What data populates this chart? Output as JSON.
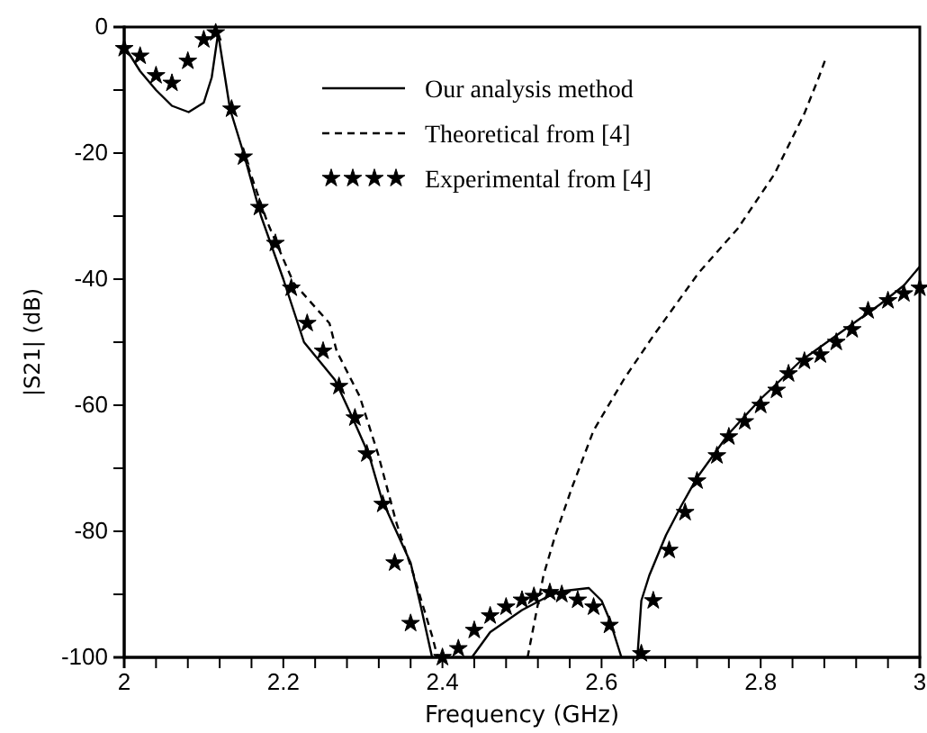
{
  "chart_data": {
    "type": "line",
    "xlabel": "Frequency (GHz)",
    "ylabel": "|S21| (dB)",
    "xlim": [
      2,
      3
    ],
    "ylim": [
      -100,
      0
    ],
    "xticks": [
      2,
      {
        "value": 2.04,
        "label": null
      },
      {
        "value": 2.08,
        "label": null
      },
      {
        "value": 2.12,
        "label": null
      },
      {
        "value": 2.16,
        "label": null
      },
      2.2,
      {
        "value": 2.24,
        "label": null
      },
      {
        "value": 2.28,
        "label": null
      },
      {
        "value": 2.32,
        "label": null
      },
      {
        "value": 2.36,
        "label": null
      },
      2.4,
      {
        "value": 2.44,
        "label": null
      },
      {
        "value": 2.48,
        "label": null
      },
      {
        "value": 2.52,
        "label": null
      },
      {
        "value": 2.56,
        "label": null
      },
      2.6,
      {
        "value": 2.64,
        "label": null
      },
      {
        "value": 2.68,
        "label": null
      },
      {
        "value": 2.72,
        "label": null
      },
      {
        "value": 2.76,
        "label": null
      },
      2.8,
      {
        "value": 2.84,
        "label": null
      },
      {
        "value": 2.88,
        "label": null
      },
      {
        "value": 2.92,
        "label": null
      },
      {
        "value": 2.96,
        "label": null
      },
      3
    ],
    "yticks": [
      -100,
      {
        "value": -90,
        "label": null
      },
      -80,
      {
        "value": -70,
        "label": null
      },
      -60,
      {
        "value": -50,
        "label": null
      },
      -40,
      {
        "value": -30,
        "label": null
      },
      -20,
      {
        "value": -10,
        "label": null
      },
      0
    ],
    "grid": false,
    "legend": "top",
    "series": [
      {
        "name": "Our analysis method",
        "color": "#000000",
        "line_style": "solid",
        "x": [
          2,
          2.02,
          2.04,
          2.06,
          2.081,
          2.1,
          2.11,
          2.118,
          2.133,
          2.15,
          2.172,
          2.2,
          2.226,
          2.265,
          2.287,
          2.308,
          2.324,
          2.36,
          2.373,
          2.387,
          null,
          2.437,
          2.46,
          2.5,
          2.53,
          2.55,
          2.584,
          2.6,
          2.61,
          2.62,
          2.625,
          null,
          2.645,
          2.65,
          2.66,
          2.681,
          2.7,
          2.72,
          2.76,
          2.8,
          2.85,
          2.9,
          2.95,
          2.98,
          3
        ],
        "values": [
          -3,
          -7,
          -10,
          -12.5,
          -13.5,
          -12,
          -8,
          -1,
          -13,
          -20,
          -30,
          -40,
          -50,
          -56,
          -62,
          -68,
          -75,
          -85,
          -92,
          -100,
          null,
          -100,
          -96,
          -92.5,
          -90.5,
          -89.5,
          -89,
          -91,
          -94,
          -98,
          -100,
          null,
          -100,
          -91,
          -87,
          -80.6,
          -76,
          -71.5,
          -64.5,
          -59,
          -53,
          -48.5,
          -44,
          -41,
          -38
        ]
      },
      {
        "name": "Theoretical from [4]",
        "color": "#000000",
        "line_style": "dashed",
        "x": [
          2.15,
          2.18,
          2.213,
          2.258,
          2.267,
          2.296,
          2.319,
          2.342,
          2.364,
          2.387,
          2.394,
          null,
          2.507,
          2.527,
          2.541,
          2.563,
          2.59,
          2.629,
          2.665,
          2.722,
          2.771,
          2.817,
          2.855,
          2.873,
          2.882
        ],
        "values": [
          -20,
          -31,
          -40.6,
          -47,
          -51.4,
          -58.6,
          -67.7,
          -78.6,
          -87,
          -96.6,
          -100,
          null,
          -100,
          -87,
          -81,
          -73,
          -64,
          -55.7,
          -49,
          -39,
          -32,
          -23.4,
          -13.7,
          -8,
          -4.9
        ]
      },
      {
        "name": "Experimental from [4]",
        "type": "scatter",
        "color": "#000000",
        "marker": "star",
        "x": [
          2,
          2.02,
          2.04,
          2.06,
          2.08,
          2.1,
          2.115,
          2.135,
          2.15,
          2.17,
          2.19,
          2.21,
          2.23,
          2.25,
          2.27,
          2.29,
          2.305,
          2.325,
          2.34,
          2.36,
          2.4,
          2.42,
          2.44,
          2.46,
          2.48,
          2.5,
          2.515,
          2.535,
          2.55,
          2.57,
          2.59,
          2.61,
          2.65,
          2.665,
          2.685,
          2.705,
          2.72,
          2.745,
          2.76,
          2.78,
          2.8,
          2.82,
          2.835,
          2.855,
          2.875,
          2.895,
          2.915,
          2.935,
          2.96,
          2.98,
          3
        ],
        "values": [
          -3.4,
          -4.6,
          -7.7,
          -8.9,
          -5.4,
          -2,
          -0.9,
          -13,
          -20.6,
          -28.6,
          -34.3,
          -41.4,
          -47,
          -51.4,
          -57,
          -62,
          -67.7,
          -75.7,
          -85,
          -94.6,
          -100,
          -98.6,
          -95.7,
          -93.4,
          -92,
          -90.9,
          -90.3,
          -89.7,
          -90,
          -90.9,
          -92,
          -94.9,
          -99.4,
          -91,
          -83,
          -77,
          -72,
          -68,
          -65,
          -62.6,
          -60,
          -57.6,
          -55,
          -53,
          -52,
          -50,
          -48,
          -45,
          -43.4,
          -42.3,
          -41.4
        ]
      }
    ]
  }
}
